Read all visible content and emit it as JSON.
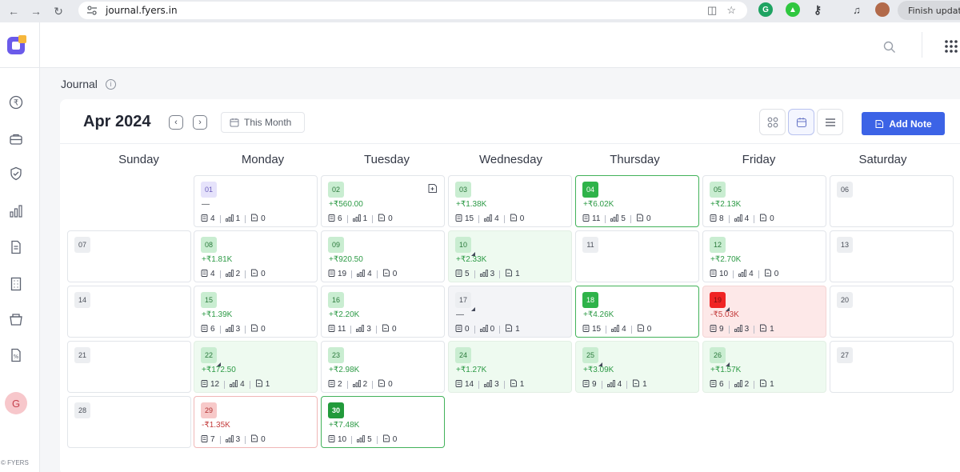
{
  "browser": {
    "url": "journal.fyers.in",
    "update_label": "Finish update",
    "colors": {
      "chrome_bg": "#e9ebef"
    }
  },
  "sidebar": {
    "icons": [
      "rupee-icon",
      "briefcase-icon",
      "shield-check-icon",
      "bar-chart-icon",
      "document-icon",
      "building-icon",
      "basket-icon",
      "report-icon"
    ],
    "avatar_letter": "G",
    "copyright": "© FYERS"
  },
  "page": {
    "title": "Journal"
  },
  "calendar": {
    "month_label": "Apr 2024",
    "this_month_label": "This Month",
    "add_note_label": "Add Note",
    "weekdays": [
      "Sunday",
      "Monday",
      "Tuesday",
      "Wednesday",
      "Thursday",
      "Friday",
      "Saturday"
    ],
    "days": [
      {
        "date": "01",
        "pnl": "—",
        "trades": "4",
        "orders": "1",
        "notes": "0"
      },
      {
        "date": "02",
        "pnl": "+₹560.00",
        "trades": "6",
        "orders": "1",
        "notes": "0"
      },
      {
        "date": "03",
        "pnl": "+₹1.38K",
        "trades": "15",
        "orders": "4",
        "notes": "0"
      },
      {
        "date": "04",
        "pnl": "+₹6.02K",
        "trades": "11",
        "orders": "5",
        "notes": "0"
      },
      {
        "date": "05",
        "pnl": "+₹2.13K",
        "trades": "8",
        "orders": "4",
        "notes": "0"
      },
      {
        "date": "06"
      },
      {
        "date": "07"
      },
      {
        "date": "08",
        "pnl": "+₹1.81K",
        "trades": "4",
        "orders": "2",
        "notes": "0"
      },
      {
        "date": "09",
        "pnl": "+₹920.50",
        "trades": "19",
        "orders": "4",
        "notes": "0"
      },
      {
        "date": "10",
        "pnl": "+₹2.33K",
        "trades": "5",
        "orders": "3",
        "notes": "1"
      },
      {
        "date": "11"
      },
      {
        "date": "12",
        "pnl": "+₹2.70K",
        "trades": "10",
        "orders": "4",
        "notes": "0"
      },
      {
        "date": "13"
      },
      {
        "date": "14"
      },
      {
        "date": "15",
        "pnl": "+₹1.39K",
        "trades": "6",
        "orders": "3",
        "notes": "0"
      },
      {
        "date": "16",
        "pnl": "+₹2.20K",
        "trades": "11",
        "orders": "3",
        "notes": "0"
      },
      {
        "date": "17",
        "pnl": "—",
        "trades": "0",
        "orders": "0",
        "notes": "1"
      },
      {
        "date": "18",
        "pnl": "+₹4.26K",
        "trades": "15",
        "orders": "4",
        "notes": "0"
      },
      {
        "date": "19",
        "pnl": "-₹5.03K",
        "trades": "9",
        "orders": "3",
        "notes": "1"
      },
      {
        "date": "20"
      },
      {
        "date": "21"
      },
      {
        "date": "22",
        "pnl": "+₹172.50",
        "trades": "12",
        "orders": "4",
        "notes": "1"
      },
      {
        "date": "23",
        "pnl": "+₹2.98K",
        "trades": "2",
        "orders": "2",
        "notes": "0"
      },
      {
        "date": "24",
        "pnl": "+₹1.27K",
        "trades": "14",
        "orders": "3",
        "notes": "1"
      },
      {
        "date": "25",
        "pnl": "+₹3.09K",
        "trades": "9",
        "orders": "4",
        "notes": "1"
      },
      {
        "date": "26",
        "pnl": "+₹1.57K",
        "trades": "6",
        "orders": "2",
        "notes": "1"
      },
      {
        "date": "27"
      },
      {
        "date": "28"
      },
      {
        "date": "29",
        "pnl": "-₹1.35K",
        "trades": "7",
        "orders": "3",
        "notes": "0"
      },
      {
        "date": "30",
        "pnl": "+₹7.48K",
        "trades": "10",
        "orders": "5",
        "notes": "0"
      }
    ]
  },
  "colors": {
    "accent": "#3c63e6",
    "profit_text": "#2c9a45",
    "loss_text": "#c33b3b",
    "profit_bg": "#eefaf0",
    "loss_bg": "#fde8e8"
  }
}
